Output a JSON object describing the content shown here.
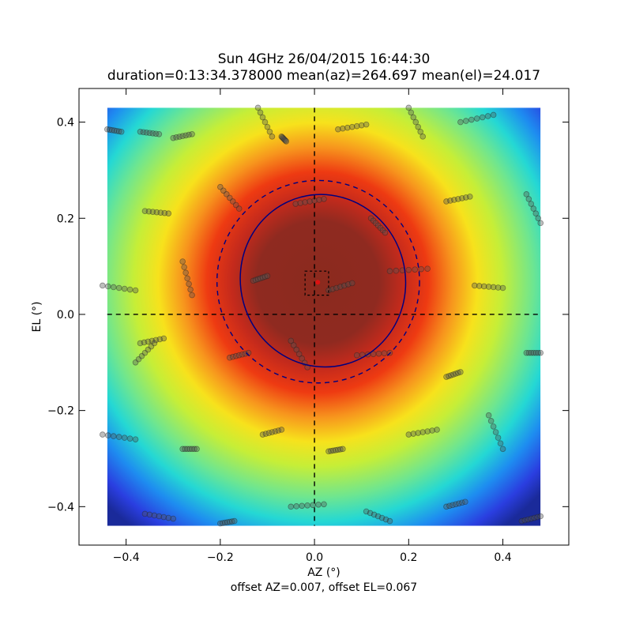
{
  "chart_data": {
    "type": "heatmap",
    "title": "Sun 4GHz 26/04/2015 16:44:30",
    "subtitle": "duration=0:13:34.378000 mean(az)=264.697 mean(el)=24.017",
    "xlabel": "AZ (°)",
    "ylabel": "EL (°)",
    "footer": "offset AZ=0.007, offset EL=0.067",
    "xlim": [
      -0.5,
      0.54
    ],
    "ylim": [
      -0.48,
      0.47
    ],
    "xticks": [
      -0.4,
      -0.2,
      0.0,
      0.2,
      0.4
    ],
    "yticks": [
      -0.4,
      -0.2,
      0.0,
      0.2,
      0.4
    ],
    "xtick_labels": [
      "−0.4",
      "−0.2",
      "0.0",
      "0.2",
      "0.4"
    ],
    "ytick_labels": [
      "−0.4",
      "−0.2",
      "0.0",
      "0.2",
      "0.4"
    ],
    "image_extent": {
      "x": [
        -0.44,
        0.48
      ],
      "y": [
        -0.44,
        0.43
      ]
    },
    "colormap": "jet",
    "peak_center": {
      "az": 0.007,
      "el": 0.067
    },
    "beam_ellipse": {
      "center": [
        0.018,
        0.07
      ],
      "semi_axes": [
        0.175,
        0.18
      ],
      "rotation_deg": -15
    },
    "half_power_circle": {
      "center": [
        0.008,
        0.068
      ],
      "radius": 0.215
    },
    "offset_box": {
      "x": [
        -0.02,
        0.03
      ],
      "y": [
        0.04,
        0.09
      ]
    },
    "colors": {
      "ellipse": "#00007f",
      "marker": "#dd1111",
      "scan_points": "#555555"
    },
    "scan_segments": [
      [
        [
          -0.44,
          0.385
        ],
        [
          -0.41,
          0.38
        ]
      ],
      [
        [
          -0.37,
          0.38
        ],
        [
          -0.33,
          0.375
        ]
      ],
      [
        [
          -0.3,
          0.367
        ],
        [
          -0.26,
          0.375
        ]
      ],
      [
        [
          -0.12,
          0.43
        ],
        [
          -0.09,
          0.37
        ]
      ],
      [
        [
          -0.07,
          0.37
        ],
        [
          -0.06,
          0.36
        ]
      ],
      [
        [
          0.05,
          0.385
        ],
        [
          0.11,
          0.395
        ]
      ],
      [
        [
          0.2,
          0.43
        ],
        [
          0.23,
          0.37
        ]
      ],
      [
        [
          0.31,
          0.4
        ],
        [
          0.38,
          0.415
        ]
      ],
      [
        [
          -0.2,
          0.265
        ],
        [
          -0.16,
          0.22
        ]
      ],
      [
        [
          -0.04,
          0.23
        ],
        [
          0.02,
          0.24
        ]
      ],
      [
        [
          0.12,
          0.2
        ],
        [
          0.15,
          0.17
        ]
      ],
      [
        [
          0.28,
          0.235
        ],
        [
          0.33,
          0.245
        ]
      ],
      [
        [
          0.45,
          0.25
        ],
        [
          0.48,
          0.19
        ]
      ],
      [
        [
          -0.36,
          0.215
        ],
        [
          -0.31,
          0.21
        ]
      ],
      [
        [
          -0.28,
          0.11
        ],
        [
          -0.26,
          0.04
        ]
      ],
      [
        [
          -0.13,
          0.07
        ],
        [
          -0.1,
          0.08
        ]
      ],
      [
        [
          0.03,
          0.05
        ],
        [
          0.08,
          0.065
        ]
      ],
      [
        [
          0.16,
          0.09
        ],
        [
          0.24,
          0.095
        ]
      ],
      [
        [
          0.34,
          0.06
        ],
        [
          0.4,
          0.055
        ]
      ],
      [
        [
          -0.45,
          0.06
        ],
        [
          -0.38,
          0.05
        ]
      ],
      [
        [
          -0.37,
          -0.06
        ],
        [
          -0.32,
          -0.05
        ]
      ],
      [
        [
          -0.18,
          -0.09
        ],
        [
          -0.14,
          -0.08
        ]
      ],
      [
        [
          -0.05,
          -0.055
        ],
        [
          -0.015,
          -0.11
        ]
      ],
      [
        [
          0.09,
          -0.085
        ],
        [
          0.16,
          -0.08
        ]
      ],
      [
        [
          0.28,
          -0.13
        ],
        [
          0.31,
          -0.12
        ]
      ],
      [
        [
          0.45,
          -0.08
        ],
        [
          0.48,
          -0.08
        ]
      ],
      [
        [
          -0.38,
          -0.1
        ],
        [
          -0.34,
          -0.06
        ]
      ],
      [
        [
          -0.45,
          -0.25
        ],
        [
          -0.38,
          -0.26
        ]
      ],
      [
        [
          -0.28,
          -0.28
        ],
        [
          -0.25,
          -0.28
        ]
      ],
      [
        [
          -0.11,
          -0.25
        ],
        [
          -0.07,
          -0.24
        ]
      ],
      [
        [
          0.2,
          -0.25
        ],
        [
          0.26,
          -0.24
        ]
      ],
      [
        [
          0.37,
          -0.21
        ],
        [
          0.4,
          -0.28
        ]
      ],
      [
        [
          -0.05,
          -0.4
        ],
        [
          0.02,
          -0.395
        ]
      ],
      [
        [
          0.03,
          -0.285
        ],
        [
          0.06,
          -0.28
        ]
      ],
      [
        [
          0.11,
          -0.41
        ],
        [
          0.16,
          -0.43
        ]
      ],
      [
        [
          0.28,
          -0.4
        ],
        [
          0.32,
          -0.39
        ]
      ],
      [
        [
          -0.36,
          -0.415
        ],
        [
          -0.3,
          -0.425
        ]
      ],
      [
        [
          -0.2,
          -0.435
        ],
        [
          -0.17,
          -0.43
        ]
      ],
      [
        [
          0.44,
          -0.43
        ],
        [
          0.48,
          -0.42
        ]
      ]
    ]
  }
}
